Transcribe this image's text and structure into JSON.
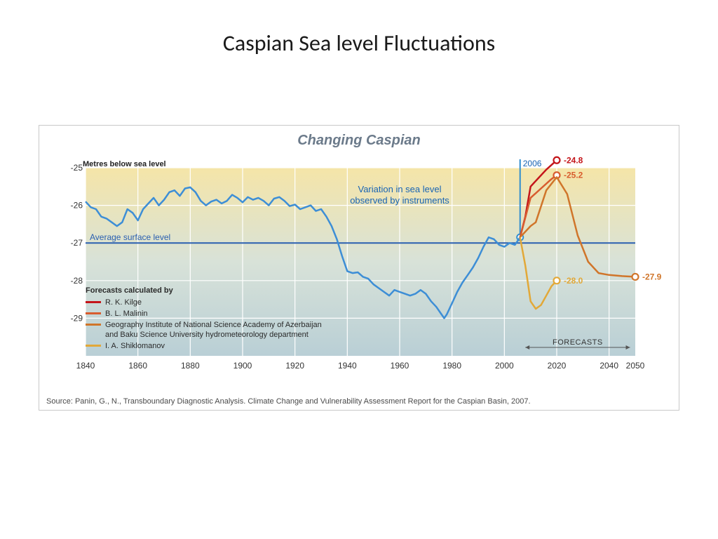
{
  "page_title": "Caspian Sea level Fluctuations",
  "chart": {
    "type": "line",
    "title": "Changing Caspian",
    "y_axis_label": "Metres below sea level",
    "xlim": [
      1840,
      2050
    ],
    "ylim": [
      -30,
      -25
    ],
    "xticks": [
      1840,
      1860,
      1880,
      1900,
      1920,
      1940,
      1960,
      1980,
      2000,
      2020,
      2040,
      2050
    ],
    "yticks": [
      -25,
      -26,
      -27,
      -28,
      -29
    ],
    "grid_color": "#ffffff",
    "grid_width": 1.2,
    "axis_text_color": "#333333",
    "axis_fontsize": 12,
    "tick_fontsize": 12,
    "background_gradient": {
      "top": "#f5e5a8",
      "mid": "#d8e2d8",
      "bottom": "#b9cfd6"
    },
    "average_line": {
      "label": "Average surface level",
      "value": -27,
      "color": "#2a5fb0",
      "width": 2
    },
    "marker_2006": {
      "label": "2006",
      "x": 2006,
      "color": "#2f8ecf",
      "text_color": "#1964b3"
    },
    "variation_label": {
      "text_l1": "Variation in sea level",
      "text_l2": "observed by instruments",
      "color": "#1964b3",
      "fontsize": 13
    },
    "forecasts_arrow_label": "FORECASTS",
    "observed": {
      "color": "#3d8ed6",
      "width": 2.5,
      "points": [
        [
          1840,
          -25.9
        ],
        [
          1842,
          -26.05
        ],
        [
          1844,
          -26.1
        ],
        [
          1846,
          -26.3
        ],
        [
          1848,
          -26.35
        ],
        [
          1850,
          -26.45
        ],
        [
          1852,
          -26.55
        ],
        [
          1854,
          -26.45
        ],
        [
          1856,
          -26.1
        ],
        [
          1858,
          -26.2
        ],
        [
          1860,
          -26.4
        ],
        [
          1862,
          -26.1
        ],
        [
          1864,
          -25.95
        ],
        [
          1866,
          -25.8
        ],
        [
          1868,
          -26.0
        ],
        [
          1870,
          -25.85
        ],
        [
          1872,
          -25.65
        ],
        [
          1874,
          -25.6
        ],
        [
          1876,
          -25.75
        ],
        [
          1878,
          -25.55
        ],
        [
          1880,
          -25.52
        ],
        [
          1882,
          -25.65
        ],
        [
          1884,
          -25.88
        ],
        [
          1886,
          -26.0
        ],
        [
          1888,
          -25.9
        ],
        [
          1890,
          -25.85
        ],
        [
          1892,
          -25.95
        ],
        [
          1894,
          -25.88
        ],
        [
          1896,
          -25.72
        ],
        [
          1898,
          -25.8
        ],
        [
          1900,
          -25.92
        ],
        [
          1902,
          -25.78
        ],
        [
          1904,
          -25.85
        ],
        [
          1906,
          -25.8
        ],
        [
          1908,
          -25.88
        ],
        [
          1910,
          -26.0
        ],
        [
          1912,
          -25.82
        ],
        [
          1914,
          -25.78
        ],
        [
          1916,
          -25.88
        ],
        [
          1918,
          -26.02
        ],
        [
          1920,
          -25.98
        ],
        [
          1922,
          -26.1
        ],
        [
          1924,
          -26.05
        ],
        [
          1926,
          -26.0
        ],
        [
          1928,
          -26.15
        ],
        [
          1930,
          -26.1
        ],
        [
          1932,
          -26.3
        ],
        [
          1934,
          -26.55
        ],
        [
          1936,
          -26.9
        ],
        [
          1938,
          -27.35
        ],
        [
          1940,
          -27.75
        ],
        [
          1942,
          -27.8
        ],
        [
          1944,
          -27.78
        ],
        [
          1946,
          -27.9
        ],
        [
          1948,
          -27.95
        ],
        [
          1950,
          -28.1
        ],
        [
          1952,
          -28.2
        ],
        [
          1954,
          -28.3
        ],
        [
          1956,
          -28.4
        ],
        [
          1958,
          -28.25
        ],
        [
          1960,
          -28.3
        ],
        [
          1962,
          -28.35
        ],
        [
          1964,
          -28.4
        ],
        [
          1966,
          -28.35
        ],
        [
          1968,
          -28.25
        ],
        [
          1970,
          -28.35
        ],
        [
          1972,
          -28.55
        ],
        [
          1974,
          -28.7
        ],
        [
          1976,
          -28.9
        ],
        [
          1977,
          -29.0
        ],
        [
          1978,
          -28.9
        ],
        [
          1980,
          -28.6
        ],
        [
          1982,
          -28.3
        ],
        [
          1984,
          -28.05
        ],
        [
          1986,
          -27.85
        ],
        [
          1988,
          -27.65
        ],
        [
          1990,
          -27.4
        ],
        [
          1992,
          -27.1
        ],
        [
          1994,
          -26.85
        ],
        [
          1996,
          -26.9
        ],
        [
          1998,
          -27.05
        ],
        [
          2000,
          -27.1
        ],
        [
          2002,
          -27.0
        ],
        [
          2004,
          -27.05
        ],
        [
          2006,
          -26.85
        ]
      ]
    },
    "forecasts": [
      {
        "id": "kilge",
        "label": "R. K. Kilge",
        "color": "#c4151a",
        "width": 2.5,
        "end_marker": "circle",
        "end_label": "-24.8",
        "points": [
          [
            2006,
            -26.85
          ],
          [
            2008,
            -26.3
          ],
          [
            2010,
            -25.5
          ],
          [
            2012,
            -25.35
          ],
          [
            2016,
            -25.05
          ],
          [
            2020,
            -24.8
          ]
        ]
      },
      {
        "id": "malinin",
        "label": "B. L. Malinin",
        "color": "#d85c2e",
        "width": 2.5,
        "end_marker": "circle",
        "end_label": "-25.2",
        "points": [
          [
            2006,
            -26.85
          ],
          [
            2010,
            -25.8
          ],
          [
            2014,
            -25.55
          ],
          [
            2018,
            -25.3
          ],
          [
            2020,
            -25.2
          ]
        ]
      },
      {
        "id": "azerbaijan",
        "label_l1": "Geography Institute of National Science Academy of Azerbaijan",
        "label_l2": "and Baku Science University hydrometeorology department",
        "color": "#d0752a",
        "width": 2.5,
        "end_marker": "circle",
        "end_label": "-27.9",
        "points": [
          [
            2006,
            -26.85
          ],
          [
            2008,
            -26.7
          ],
          [
            2010,
            -26.55
          ],
          [
            2012,
            -26.45
          ],
          [
            2016,
            -25.6
          ],
          [
            2020,
            -25.25
          ],
          [
            2024,
            -25.7
          ],
          [
            2028,
            -26.8
          ],
          [
            2032,
            -27.5
          ],
          [
            2036,
            -27.8
          ],
          [
            2040,
            -27.85
          ],
          [
            2045,
            -27.88
          ],
          [
            2050,
            -27.9
          ]
        ]
      },
      {
        "id": "shiklomanov",
        "label": "I. A. Shiklomanov",
        "color": "#e2a838",
        "width": 2.5,
        "end_marker": "circle",
        "end_label": "-28.0",
        "points": [
          [
            2006,
            -26.85
          ],
          [
            2008,
            -27.6
          ],
          [
            2010,
            -28.55
          ],
          [
            2012,
            -28.75
          ],
          [
            2014,
            -28.65
          ],
          [
            2016,
            -28.4
          ],
          [
            2018,
            -28.15
          ],
          [
            2020,
            -28.0
          ]
        ]
      }
    ],
    "legend": {
      "title": "Forecasts calculated  by",
      "fontsize": 11,
      "text_color": "#2a2a2a"
    },
    "source": "Source: Panin, G., N., Transboundary Diagnostic Analysis. Climate Change and Vulnerability Assessment Report for the Caspian Basin, 2007."
  }
}
